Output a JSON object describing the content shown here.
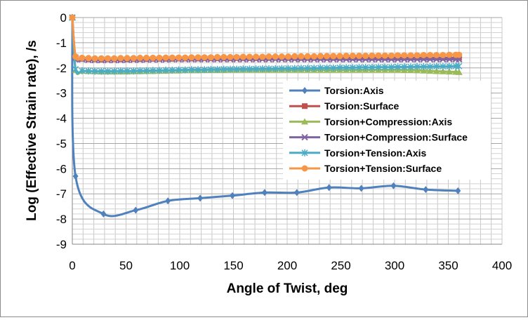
{
  "chart_data": {
    "type": "line",
    "title": "",
    "xlabel": "Angle of Twist, deg",
    "ylabel": "Log (Effective Strain rate), /s",
    "xlim": [
      0,
      400
    ],
    "ylim": [
      -9,
      0
    ],
    "xticks": [
      0,
      50,
      100,
      150,
      200,
      250,
      300,
      350,
      400
    ],
    "yticks": [
      0,
      -1,
      -2,
      -3,
      -4,
      -5,
      -6,
      -7,
      -8,
      -9
    ],
    "grid": true,
    "legend_position": "right",
    "series": [
      {
        "name": "Torsion:Axis",
        "color": "#4f81bd",
        "marker": "diamond",
        "x": [
          0,
          3,
          29,
          59,
          89,
          119,
          149,
          179,
          209,
          239,
          269,
          299,
          329,
          359
        ],
        "y": [
          0,
          -6.3,
          -7.8,
          -7.65,
          -7.28,
          -7.17,
          -7.07,
          -6.95,
          -6.95,
          -6.75,
          -6.78,
          -6.68,
          -6.83,
          -6.88
        ]
      },
      {
        "name": "Torsion:Surface",
        "color": "#c0504d",
        "marker": "square",
        "x": [
          0,
          3,
          9,
          15,
          21,
          27,
          33,
          39,
          45,
          51,
          57,
          63,
          69,
          75,
          81,
          87,
          93,
          99,
          105,
          111,
          117,
          123,
          129,
          135,
          141,
          147,
          153,
          159,
          165,
          171,
          177,
          183,
          189,
          195,
          201,
          207,
          213,
          219,
          225,
          231,
          237,
          243,
          249,
          255,
          261,
          267,
          273,
          279,
          285,
          291,
          297,
          303,
          309,
          315,
          321,
          327,
          333,
          339,
          345,
          351,
          357,
          360
        ],
        "y": [
          0,
          -1.58,
          -1.64,
          -1.66,
          -1.66,
          -1.67,
          -1.66,
          -1.66,
          -1.66,
          -1.66,
          -1.65,
          -1.65,
          -1.65,
          -1.64,
          -1.64,
          -1.64,
          -1.64,
          -1.63,
          -1.63,
          -1.63,
          -1.63,
          -1.62,
          -1.62,
          -1.62,
          -1.62,
          -1.62,
          -1.61,
          -1.61,
          -1.61,
          -1.61,
          -1.61,
          -1.6,
          -1.6,
          -1.6,
          -1.6,
          -1.6,
          -1.6,
          -1.6,
          -1.6,
          -1.6,
          -1.6,
          -1.6,
          -1.6,
          -1.6,
          -1.6,
          -1.6,
          -1.6,
          -1.6,
          -1.6,
          -1.6,
          -1.6,
          -1.6,
          -1.6,
          -1.6,
          -1.6,
          -1.6,
          -1.6,
          -1.6,
          -1.6,
          -1.6,
          -1.6,
          -1.6
        ]
      },
      {
        "name": "Torsion+Compression:Axis",
        "color": "#9bbb59",
        "marker": "triangle",
        "x": [
          0,
          3,
          9,
          15,
          21,
          27,
          33,
          39,
          45,
          51,
          57,
          63,
          69,
          75,
          81,
          87,
          93,
          99,
          105,
          111,
          117,
          123,
          129,
          135,
          141,
          147,
          153,
          159,
          165,
          171,
          177,
          183,
          189,
          195,
          201,
          207,
          213,
          219,
          225,
          231,
          237,
          243,
          249,
          255,
          261,
          267,
          273,
          279,
          285,
          291,
          297,
          303,
          309,
          315,
          321,
          327,
          333,
          339,
          345,
          351,
          357,
          360
        ],
        "y": [
          0,
          -2.08,
          -2.12,
          -2.13,
          -2.14,
          -2.15,
          -2.15,
          -2.15,
          -2.15,
          -2.15,
          -2.14,
          -2.14,
          -2.13,
          -2.13,
          -2.12,
          -2.12,
          -2.11,
          -2.11,
          -2.1,
          -2.1,
          -2.1,
          -2.09,
          -2.09,
          -2.09,
          -2.09,
          -2.08,
          -2.08,
          -2.08,
          -2.08,
          -2.08,
          -2.08,
          -2.08,
          -2.08,
          -2.08,
          -2.08,
          -2.08,
          -2.08,
          -2.08,
          -2.08,
          -2.08,
          -2.08,
          -2.08,
          -2.08,
          -2.08,
          -2.08,
          -2.08,
          -2.08,
          -2.08,
          -2.08,
          -2.08,
          -2.08,
          -2.08,
          -2.09,
          -2.09,
          -2.1,
          -2.11,
          -2.12,
          -2.13,
          -2.14,
          -2.15,
          -2.16,
          -2.17
        ]
      },
      {
        "name": "Torsion+Compression:Surface",
        "color": "#8064a2",
        "marker": "x",
        "x": [
          0,
          3,
          9,
          15,
          21,
          27,
          33,
          39,
          45,
          51,
          57,
          63,
          69,
          75,
          81,
          87,
          93,
          99,
          105,
          111,
          117,
          123,
          129,
          135,
          141,
          147,
          153,
          159,
          165,
          171,
          177,
          183,
          189,
          195,
          201,
          207,
          213,
          219,
          225,
          231,
          237,
          243,
          249,
          255,
          261,
          267,
          273,
          279,
          285,
          291,
          297,
          303,
          309,
          315,
          321,
          327,
          333,
          339,
          345,
          351,
          357,
          360
        ],
        "y": [
          0,
          -1.6,
          -1.66,
          -1.68,
          -1.69,
          -1.69,
          -1.69,
          -1.69,
          -1.69,
          -1.68,
          -1.68,
          -1.68,
          -1.67,
          -1.67,
          -1.67,
          -1.67,
          -1.66,
          -1.66,
          -1.66,
          -1.66,
          -1.66,
          -1.66,
          -1.66,
          -1.66,
          -1.66,
          -1.66,
          -1.66,
          -1.66,
          -1.66,
          -1.66,
          -1.66,
          -1.66,
          -1.66,
          -1.66,
          -1.66,
          -1.66,
          -1.66,
          -1.66,
          -1.66,
          -1.66,
          -1.66,
          -1.66,
          -1.66,
          -1.66,
          -1.66,
          -1.66,
          -1.66,
          -1.66,
          -1.66,
          -1.66,
          -1.66,
          -1.66,
          -1.66,
          -1.66,
          -1.66,
          -1.66,
          -1.66,
          -1.66,
          -1.66,
          -1.66,
          -1.66,
          -1.66
        ]
      },
      {
        "name": "Torsion+Tension:Axis",
        "color": "#4bacc6",
        "marker": "asterisk",
        "x": [
          0,
          3,
          9,
          15,
          21,
          27,
          33,
          39,
          45,
          51,
          57,
          63,
          69,
          75,
          81,
          87,
          93,
          99,
          105,
          111,
          117,
          123,
          129,
          135,
          141,
          147,
          153,
          159,
          165,
          171,
          177,
          183,
          189,
          195,
          201,
          207,
          213,
          219,
          225,
          231,
          237,
          243,
          249,
          255,
          261,
          267,
          273,
          279,
          285,
          291,
          297,
          303,
          309,
          315,
          321,
          327,
          333,
          339,
          345,
          351,
          357,
          360
        ],
        "y": [
          0,
          -2.05,
          -2.11,
          -2.12,
          -2.13,
          -2.13,
          -2.13,
          -2.13,
          -2.12,
          -2.12,
          -2.12,
          -2.11,
          -2.11,
          -2.1,
          -2.1,
          -2.09,
          -2.09,
          -2.08,
          -2.08,
          -2.07,
          -2.07,
          -2.07,
          -2.06,
          -2.06,
          -2.05,
          -2.05,
          -2.05,
          -2.04,
          -2.04,
          -2.04,
          -2.03,
          -2.03,
          -2.03,
          -2.02,
          -2.02,
          -2.02,
          -2.01,
          -2.01,
          -2.01,
          -2.0,
          -2.0,
          -2.0,
          -1.99,
          -1.99,
          -1.99,
          -1.98,
          -1.98,
          -1.98,
          -1.97,
          -1.97,
          -1.97,
          -1.96,
          -1.96,
          -1.96,
          -1.95,
          -1.95,
          -1.95,
          -1.94,
          -1.94,
          -1.94,
          -1.93,
          -1.93
        ]
      },
      {
        "name": "Torsion+Tension:Surface",
        "color": "#f79646",
        "marker": "circle",
        "x": [
          0,
          3,
          9,
          15,
          21,
          27,
          33,
          39,
          45,
          51,
          57,
          63,
          69,
          75,
          81,
          87,
          93,
          99,
          105,
          111,
          117,
          123,
          129,
          135,
          141,
          147,
          153,
          159,
          165,
          171,
          177,
          183,
          189,
          195,
          201,
          207,
          213,
          219,
          225,
          231,
          237,
          243,
          249,
          255,
          261,
          267,
          273,
          279,
          285,
          291,
          297,
          303,
          309,
          315,
          321,
          327,
          333,
          339,
          345,
          351,
          357,
          360
        ],
        "y": [
          0,
          -1.55,
          -1.6,
          -1.61,
          -1.62,
          -1.62,
          -1.62,
          -1.62,
          -1.61,
          -1.61,
          -1.61,
          -1.6,
          -1.6,
          -1.6,
          -1.6,
          -1.59,
          -1.59,
          -1.59,
          -1.59,
          -1.58,
          -1.58,
          -1.58,
          -1.58,
          -1.57,
          -1.57,
          -1.57,
          -1.57,
          -1.56,
          -1.56,
          -1.56,
          -1.56,
          -1.55,
          -1.55,
          -1.55,
          -1.55,
          -1.54,
          -1.54,
          -1.54,
          -1.54,
          -1.53,
          -1.53,
          -1.53,
          -1.53,
          -1.52,
          -1.52,
          -1.52,
          -1.52,
          -1.51,
          -1.51,
          -1.51,
          -1.51,
          -1.5,
          -1.5,
          -1.5,
          -1.5,
          -1.49,
          -1.49,
          -1.49,
          -1.49,
          -1.48,
          -1.48,
          -1.48
        ]
      }
    ]
  }
}
